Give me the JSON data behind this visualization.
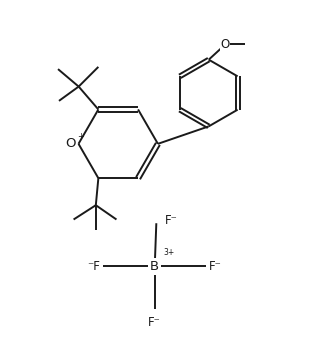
{
  "bg_color": "#ffffff",
  "line_color": "#1a1a1a",
  "line_width": 1.4,
  "font_size": 8.5,
  "figsize": [
    3.19,
    3.48
  ],
  "dpi": 100,
  "xlim": [
    0,
    10
  ],
  "ylim": [
    0,
    10.9
  ]
}
